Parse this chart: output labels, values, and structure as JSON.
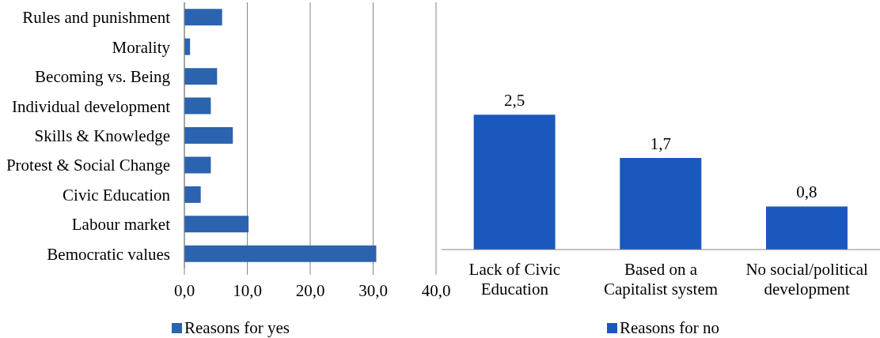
{
  "chart_data": [
    {
      "type": "bar",
      "orientation": "horizontal",
      "categories": [
        "Rules and punishment",
        "Morality",
        "Becoming vs. Being",
        "Individual development",
        "Skills & Knowledge",
        "Protest & Social Change",
        "Civic Education",
        "Labour market",
        "Bemocratic values"
      ],
      "series": [
        {
          "name": "Reasons for yes",
          "color": "#2b63ae",
          "values": [
            6.0,
            0.9,
            5.2,
            4.2,
            7.7,
            4.2,
            2.6,
            10.2,
            30.5
          ]
        }
      ],
      "xlim": [
        0,
        40
      ],
      "xticks": [
        {
          "value": 0,
          "label": "0,0"
        },
        {
          "value": 10,
          "label": "10,0"
        },
        {
          "value": 20,
          "label": "20,0"
        },
        {
          "value": 30,
          "label": "30,0"
        },
        {
          "value": 40,
          "label": "40,0"
        }
      ],
      "grid": "x",
      "legend": "bottom"
    },
    {
      "type": "bar",
      "categories": [
        "Lack of Civic Education",
        "Based on a Capitalist system",
        "No social/political development"
      ],
      "series": [
        {
          "name": "Reasons for no",
          "color": "#1a58bd",
          "values": [
            2.5,
            1.7,
            0.8
          ],
          "value_labels": [
            "2,5",
            "1,7",
            "0,8"
          ]
        }
      ],
      "tick_labels": "x",
      "legend": "bottom"
    }
  ]
}
